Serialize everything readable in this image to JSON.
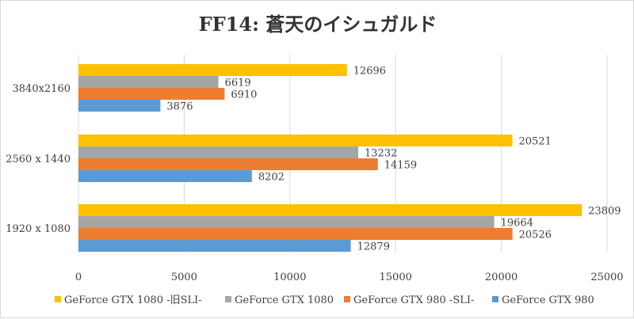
{
  "chart_data": {
    "type": "bar",
    "orientation": "horizontal",
    "title": "FF14: 蒼天のイシュガルド",
    "categories": [
      "3840x2160",
      "2560 x 1440",
      "1920 x 1080"
    ],
    "series": [
      {
        "name": "GeForce GTX 1080 -旧SLI-",
        "color": "#ffc000",
        "values": [
          12696,
          20521,
          23809
        ]
      },
      {
        "name": "GeForce GTX 1080",
        "color": "#a5a5a5",
        "values": [
          6619,
          13232,
          19664
        ]
      },
      {
        "name": "GeForce GTX 980 -SLI-",
        "color": "#ed7d31",
        "values": [
          6910,
          14159,
          20526
        ]
      },
      {
        "name": "GeForce GTX 980",
        "color": "#5b9bd5",
        "values": [
          3876,
          8202,
          12879
        ]
      }
    ],
    "xlim": [
      0,
      25000
    ],
    "xticks": [
      0,
      5000,
      10000,
      15000,
      20000,
      25000
    ],
    "grid": true,
    "legend": "bottom"
  }
}
